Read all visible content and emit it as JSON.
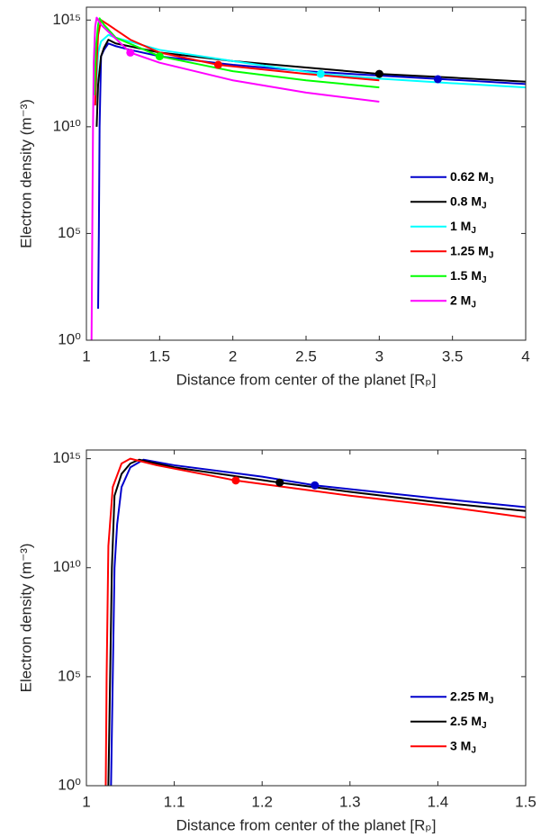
{
  "chart_data": [
    {
      "type": "line",
      "log_y": true,
      "legend": "lower right",
      "grid": false,
      "xlabel": "Distance from center of the planet [Rₚ]",
      "ylabel": "Electron density (m⁻³)",
      "xlim": [
        1,
        4
      ],
      "xticks": [
        1,
        1.5,
        2,
        2.5,
        3,
        3.5,
        4
      ],
      "ylim": [
        1,
        4000000000000000.0
      ],
      "yticks": [
        {
          "value": 1,
          "label": "10⁰"
        },
        {
          "value": 100000,
          "label": "10⁵"
        },
        {
          "value": 10000000000,
          "label": "10¹⁰"
        },
        {
          "value": 1000000000000000,
          "label": "10¹⁵"
        }
      ],
      "series": [
        {
          "name": "0.62 MJ",
          "color": "#0000cc",
          "x": [
            1.08,
            1.085,
            1.09,
            1.1,
            1.12,
            1.15,
            1.2,
            1.3,
            1.5,
            2,
            2.5,
            3,
            3.5,
            4
          ],
          "values": [
            30,
            100000,
            10000000000,
            20000000000000.0,
            40000000000000.0,
            80000000000000.0,
            60000000000000.0,
            40000000000000.0,
            20000000000000.0,
            8000000000000.0,
            4000000000000.0,
            2500000000000.0,
            1600000000000.0,
            1000000000000.0
          ],
          "marker": {
            "x": 3.4,
            "y": 1700000000000.0
          }
        },
        {
          "name": "0.8 MJ",
          "color": "#000000",
          "x": [
            1.07,
            1.08,
            1.1,
            1.12,
            1.15,
            1.2,
            1.5,
            2,
            2.5,
            3,
            3.5,
            4
          ],
          "values": [
            10000000000,
            1000000000000.0,
            20000000000000.0,
            50000000000000.0,
            120000000000000.0,
            80000000000000.0,
            30000000000000.0,
            12000000000000.0,
            6000000000000.0,
            3000000000000.0,
            2000000000000.0,
            1300000000000.0
          ],
          "marker": {
            "x": 3,
            "y": 3000000000000.0
          }
        },
        {
          "name": "1 MJ",
          "color": "#00ffff",
          "x": [
            1.06,
            1.08,
            1.1,
            1.15,
            1.2,
            1.5,
            2,
            2.6,
            3,
            3.5,
            4
          ],
          "values": [
            100000000000.0,
            30000000000000.0,
            100000000000000.0,
            200000000000000.0,
            150000000000000.0,
            40000000000000.0,
            12000000000000.0,
            3000000000000.0,
            1800000000000.0,
            1100000000000.0,
            700000000000.0
          ],
          "marker": {
            "x": 2.6,
            "y": 3000000000000.0
          }
        },
        {
          "name": "1.25 MJ",
          "color": "#ff0000",
          "x": [
            1.06,
            1.07,
            1.08,
            1.1,
            1.15,
            1.3,
            1.5,
            1.9,
            2.5,
            3
          ],
          "values": [
            100000000000.0,
            10000000000000.0,
            200000000000000.0,
            1000000000000000.0,
            600000000000000.0,
            120000000000000.0,
            30000000000000.0,
            8000000000000.0,
            3000000000000.0,
            1500000000000.0
          ],
          "marker": {
            "x": 1.9,
            "y": 8000000000000.0
          }
        },
        {
          "name": "1.5 MJ",
          "color": "#00ff00",
          "x": [
            1.055,
            1.065,
            1.08,
            1.09,
            1.12,
            1.2,
            1.5,
            2,
            2.5,
            3
          ],
          "values": [
            300000000000.0,
            50000000000000.0,
            600000000000000.0,
            1200000000000000.0,
            600000000000000.0,
            150000000000000.0,
            20000000000000.0,
            4000000000000.0,
            1500000000000.0,
            700000000000.0
          ],
          "marker": {
            "x": 1.5,
            "y": 20000000000000.0
          }
        },
        {
          "name": "2 MJ",
          "color": "#ff00ff",
          "x": [
            1.035,
            1.04,
            1.045,
            1.05,
            1.06,
            1.07,
            1.1,
            1.3,
            1.5,
            2,
            2.5,
            3
          ],
          "values": [
            1,
            100000,
            10000000000,
            10000000000000.0,
            500000000000000.0,
            1300000000000000.0,
            600000000000000.0,
            30000000000000.0,
            10000000000000.0,
            1500000000000.0,
            400000000000.0,
            150000000000.0
          ],
          "marker": {
            "x": 1.3,
            "y": 30000000000000.0
          }
        }
      ]
    },
    {
      "type": "line",
      "log_y": true,
      "legend": "lower right",
      "grid": false,
      "xlabel": "Distance from center of the planet [Rₚ]",
      "ylabel": "Electron density (m⁻³)",
      "xlim": [
        1,
        1.5
      ],
      "xticks": [
        1,
        1.1,
        1.2,
        1.3,
        1.4,
        1.5
      ],
      "ylim": [
        1,
        2500000000000000.0
      ],
      "yticks": [
        {
          "value": 1,
          "label": "10⁰"
        },
        {
          "value": 100000,
          "label": "10⁵"
        },
        {
          "value": 10000000000,
          "label": "10¹⁰"
        },
        {
          "value": 1000000000000000,
          "label": "10¹⁵"
        }
      ],
      "series": [
        {
          "name": "2.25 MJ",
          "color": "#0000cc",
          "x": [
            1.028,
            1.03,
            1.032,
            1.035,
            1.04,
            1.05,
            1.065,
            1.1,
            1.2,
            1.26,
            1.3,
            1.4,
            1.5
          ],
          "values": [
            1,
            100000,
            10000000000,
            1000000000000.0,
            50000000000000.0,
            400000000000000.0,
            900000000000000.0,
            500000000000000.0,
            150000000000000.0,
            60000000000000.0,
            40000000000000.0,
            15000000000000.0,
            6000000000000.0
          ],
          "marker": {
            "x": 1.26,
            "y": 60000000000000.0
          }
        },
        {
          "name": "2.5 MJ",
          "color": "#000000",
          "x": [
            1.025,
            1.027,
            1.029,
            1.032,
            1.04,
            1.05,
            1.06,
            1.1,
            1.22,
            1.3,
            1.4,
            1.5
          ],
          "values": [
            1,
            100000,
            10000000000,
            20000000000000.0,
            200000000000000.0,
            600000000000000.0,
            900000000000000.0,
            400000000000000.0,
            80000000000000.0,
            30000000000000.0,
            10000000000000.0,
            4000000000000.0
          ],
          "marker": {
            "x": 1.22,
            "y": 80000000000000.0
          }
        },
        {
          "name": "3 MJ",
          "color": "#ff0000",
          "x": [
            1.022,
            1.023,
            1.025,
            1.03,
            1.04,
            1.05,
            1.08,
            1.17,
            1.3,
            1.4,
            1.5
          ],
          "values": [
            1,
            100000,
            100000000000.0,
            50000000000000.0,
            600000000000000.0,
            1000000000000000.0,
            500000000000000.0,
            100000000000000.0,
            20000000000000.0,
            7000000000000.0,
            2000000000000.0
          ],
          "marker": {
            "x": 1.17,
            "y": 100000000000000.0
          }
        }
      ]
    }
  ]
}
